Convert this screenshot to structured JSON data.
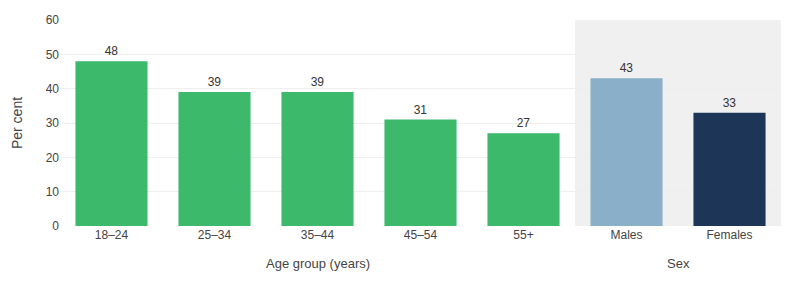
{
  "chart_data": {
    "type": "bar",
    "categories": [
      "18–24",
      "25–34",
      "35–44",
      "45–54",
      "55+",
      "Males",
      "Females"
    ],
    "values": [
      48,
      39,
      39,
      31,
      27,
      43,
      33
    ],
    "colors": [
      "#3cb96a",
      "#3cb96a",
      "#3cb96a",
      "#3cb96a",
      "#3cb96a",
      "#8aafc9",
      "#1d3557"
    ],
    "y_label": "Per cent",
    "annotations": [
      {
        "text": "Age group (years)",
        "categories": [
          "18–24",
          "25–34",
          "35–44",
          "45–54",
          "55+"
        ]
      },
      {
        "text": "Sex",
        "categories": [
          "Males",
          "Females"
        ]
      }
    ],
    "ylim": [
      0,
      60
    ],
    "yticks": [
      0,
      10,
      20,
      30,
      40,
      50,
      60
    ],
    "grid": true,
    "data_labels": true
  }
}
